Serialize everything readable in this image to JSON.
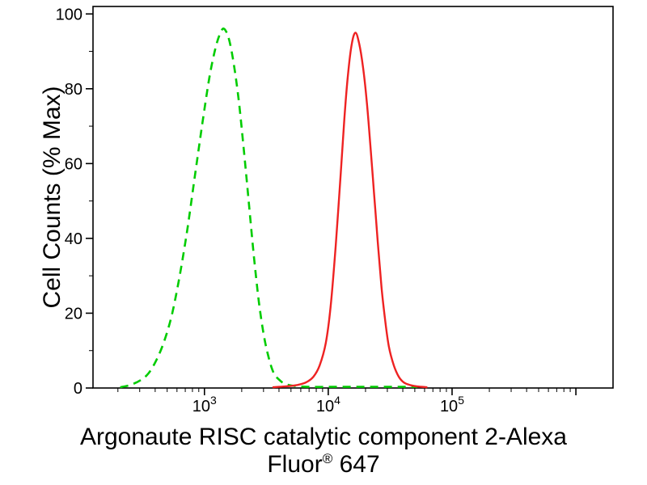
{
  "chart_data": {
    "type": "line",
    "subtype": "flow-cytometry-histogram",
    "title_line1": "Argonaute RISC catalytic component 2-Alexa",
    "title_line2_pre": "Fluor",
    "title_line2_sup": "®",
    "title_line2_post": " 647",
    "ylabel": "Cell Counts (% Max)",
    "x_scale": "log10",
    "xlim_log": [
      2.1,
      6.3
    ],
    "ylim": [
      0,
      102
    ],
    "y_ticks": [
      0,
      20,
      40,
      60,
      80,
      100
    ],
    "y_minor_ticks": [
      10,
      30,
      50,
      70,
      90
    ],
    "x_major_ticks_log": [
      3,
      4,
      5,
      6
    ],
    "x_labeled_ticks": [
      {
        "log": 3,
        "base": "10",
        "exp": "3"
      },
      {
        "log": 4,
        "base": "10",
        "exp": "4"
      },
      {
        "log": 5,
        "base": "10",
        "exp": "5"
      }
    ],
    "grid": false,
    "legend": "none",
    "colors": {
      "axis": "#000000",
      "background": "#ffffff",
      "green_series": "#00cc00",
      "red_series": "#ee2222"
    },
    "series": [
      {
        "key": "green-dashed-control",
        "style": "dashed",
        "color": "#00cc00",
        "dash": "10 7",
        "width": 2.6,
        "peak_log_x": 3.16,
        "peak_y": 96,
        "points": [
          [
            2.32,
            0.2
          ],
          [
            2.4,
            0.8
          ],
          [
            2.48,
            2
          ],
          [
            2.55,
            4
          ],
          [
            2.62,
            8
          ],
          [
            2.68,
            13
          ],
          [
            2.74,
            20
          ],
          [
            2.8,
            30
          ],
          [
            2.86,
            42
          ],
          [
            2.92,
            56
          ],
          [
            2.98,
            70
          ],
          [
            3.04,
            83
          ],
          [
            3.09,
            91
          ],
          [
            3.13,
            95
          ],
          [
            3.16,
            96
          ],
          [
            3.2,
            93
          ],
          [
            3.24,
            86
          ],
          [
            3.28,
            76
          ],
          [
            3.32,
            63
          ],
          [
            3.36,
            49
          ],
          [
            3.4,
            35
          ],
          [
            3.44,
            23
          ],
          [
            3.48,
            14
          ],
          [
            3.52,
            8
          ],
          [
            3.56,
            4
          ],
          [
            3.61,
            2
          ],
          [
            3.66,
            1
          ],
          [
            3.74,
            0.5
          ],
          [
            3.85,
            0.3
          ],
          [
            4.0,
            0.3
          ],
          [
            4.2,
            0.3
          ],
          [
            4.4,
            0.3
          ],
          [
            4.6,
            0.3
          ],
          [
            4.72,
            0.3
          ]
        ]
      },
      {
        "key": "red-solid-stained",
        "style": "solid",
        "color": "#ee2222",
        "dash": "",
        "width": 2.4,
        "peak_log_x": 4.22,
        "peak_y": 95,
        "points": [
          [
            3.55,
            0.2
          ],
          [
            3.65,
            0.4
          ],
          [
            3.75,
            0.8
          ],
          [
            3.82,
            1.5
          ],
          [
            3.88,
            3
          ],
          [
            3.93,
            6
          ],
          [
            3.98,
            12
          ],
          [
            4.02,
            22
          ],
          [
            4.06,
            38
          ],
          [
            4.1,
            57
          ],
          [
            4.13,
            72
          ],
          [
            4.16,
            84
          ],
          [
            4.19,
            92
          ],
          [
            4.22,
            95
          ],
          [
            4.25,
            92
          ],
          [
            4.28,
            86
          ],
          [
            4.31,
            77
          ],
          [
            4.34,
            65
          ],
          [
            4.37,
            52
          ],
          [
            4.4,
            39
          ],
          [
            4.43,
            27
          ],
          [
            4.46,
            18
          ],
          [
            4.49,
            11
          ],
          [
            4.53,
            6
          ],
          [
            4.57,
            3
          ],
          [
            4.61,
            1.5
          ],
          [
            4.66,
            0.8
          ],
          [
            4.72,
            0.4
          ],
          [
            4.8,
            0.2
          ]
        ]
      }
    ]
  }
}
